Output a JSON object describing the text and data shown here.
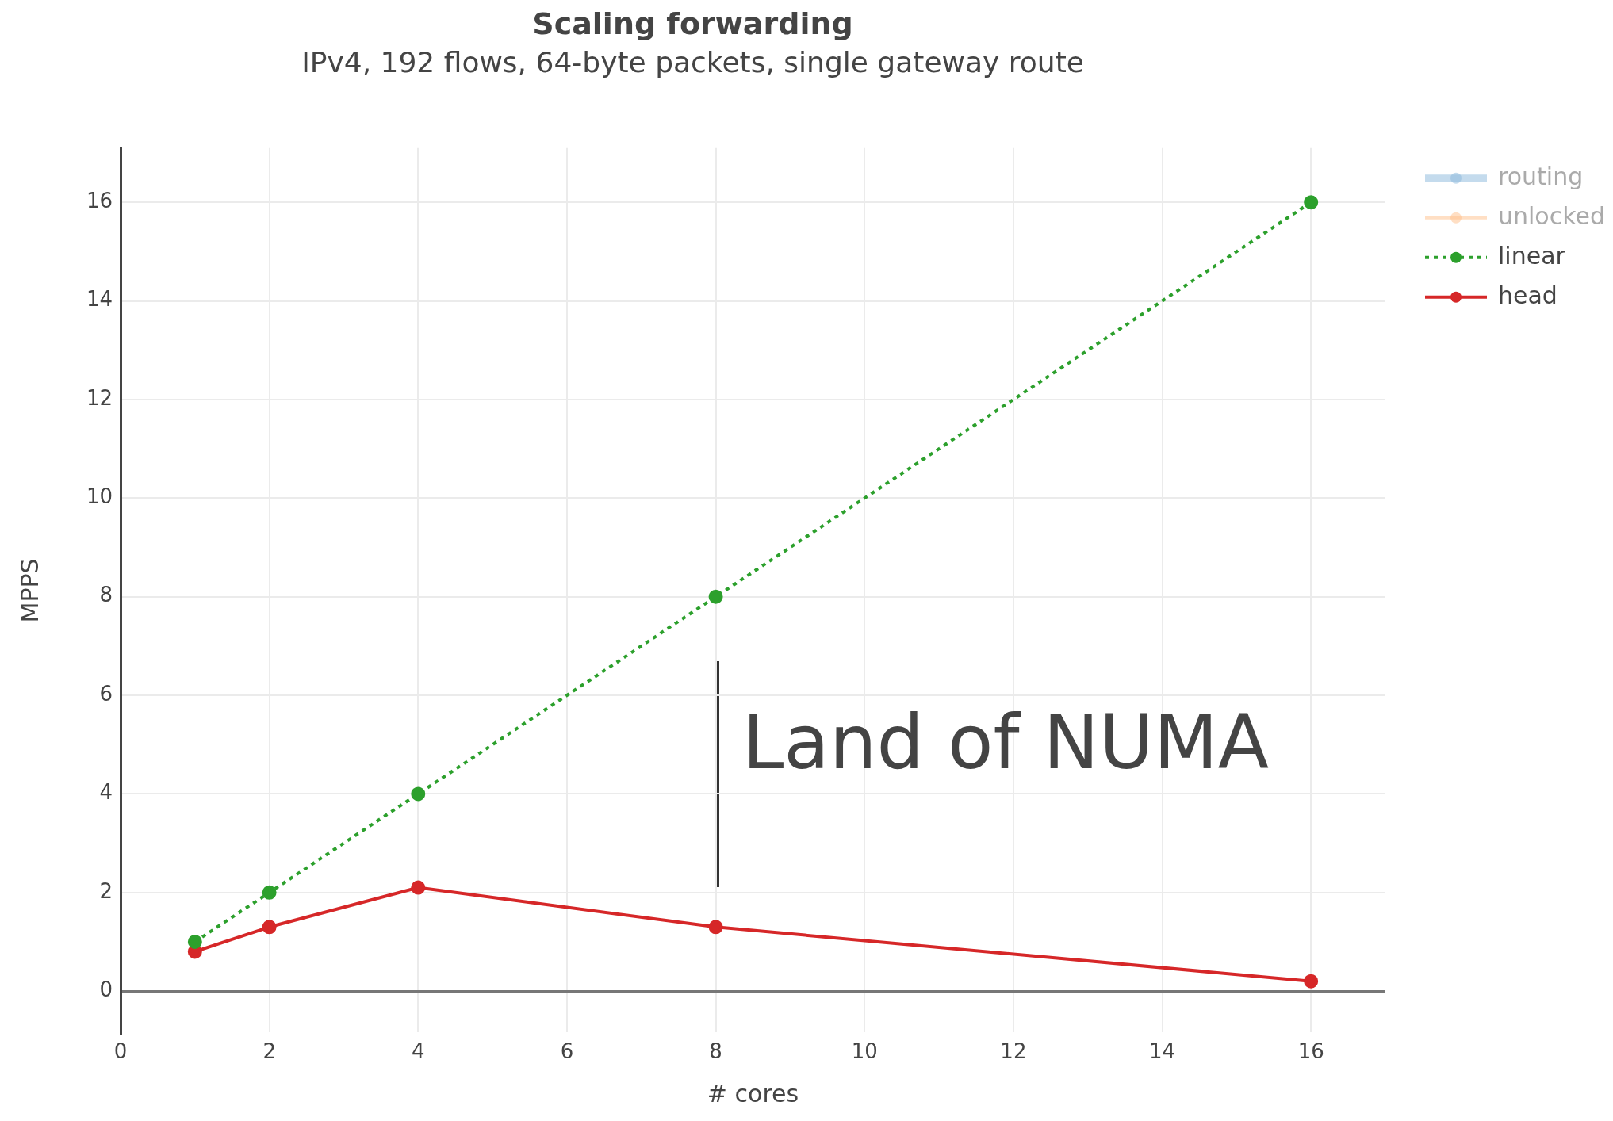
{
  "chart_data": {
    "type": "line",
    "title": "Scaling forwarding",
    "subtitle": "IPv4, 192 flows, 64-byte packets, single gateway route",
    "xlabel": "# cores",
    "ylabel": "MPPS",
    "x": [
      1,
      2,
      4,
      8,
      16
    ],
    "series": [
      {
        "name": "routing",
        "color": "#8ab8dc",
        "values": [
          null,
          null,
          null,
          null,
          null
        ]
      },
      {
        "name": "unlocked",
        "color": "#ffc08a",
        "values": [
          null,
          null,
          null,
          null,
          null
        ]
      },
      {
        "name": "linear",
        "color": "#2ca02c",
        "values": [
          1,
          2,
          4,
          8,
          16
        ],
        "line_style": "dotted"
      },
      {
        "name": "head",
        "color": "#d62728",
        "values": [
          0.8,
          1.3,
          2.1,
          1.3,
          0.2
        ],
        "line_style": "solid"
      }
    ],
    "xlim": [
      0,
      17
    ],
    "xticks": [
      0,
      2,
      4,
      6,
      8,
      10,
      12,
      14,
      16
    ],
    "ylim": [
      -0.85,
      17.1
    ],
    "yticks": [
      0,
      2,
      4,
      6,
      8,
      10,
      12,
      14,
      16
    ],
    "grid": true,
    "legend": "top right",
    "marker": "circle",
    "annotations": [
      "Land of NUMA"
    ]
  }
}
